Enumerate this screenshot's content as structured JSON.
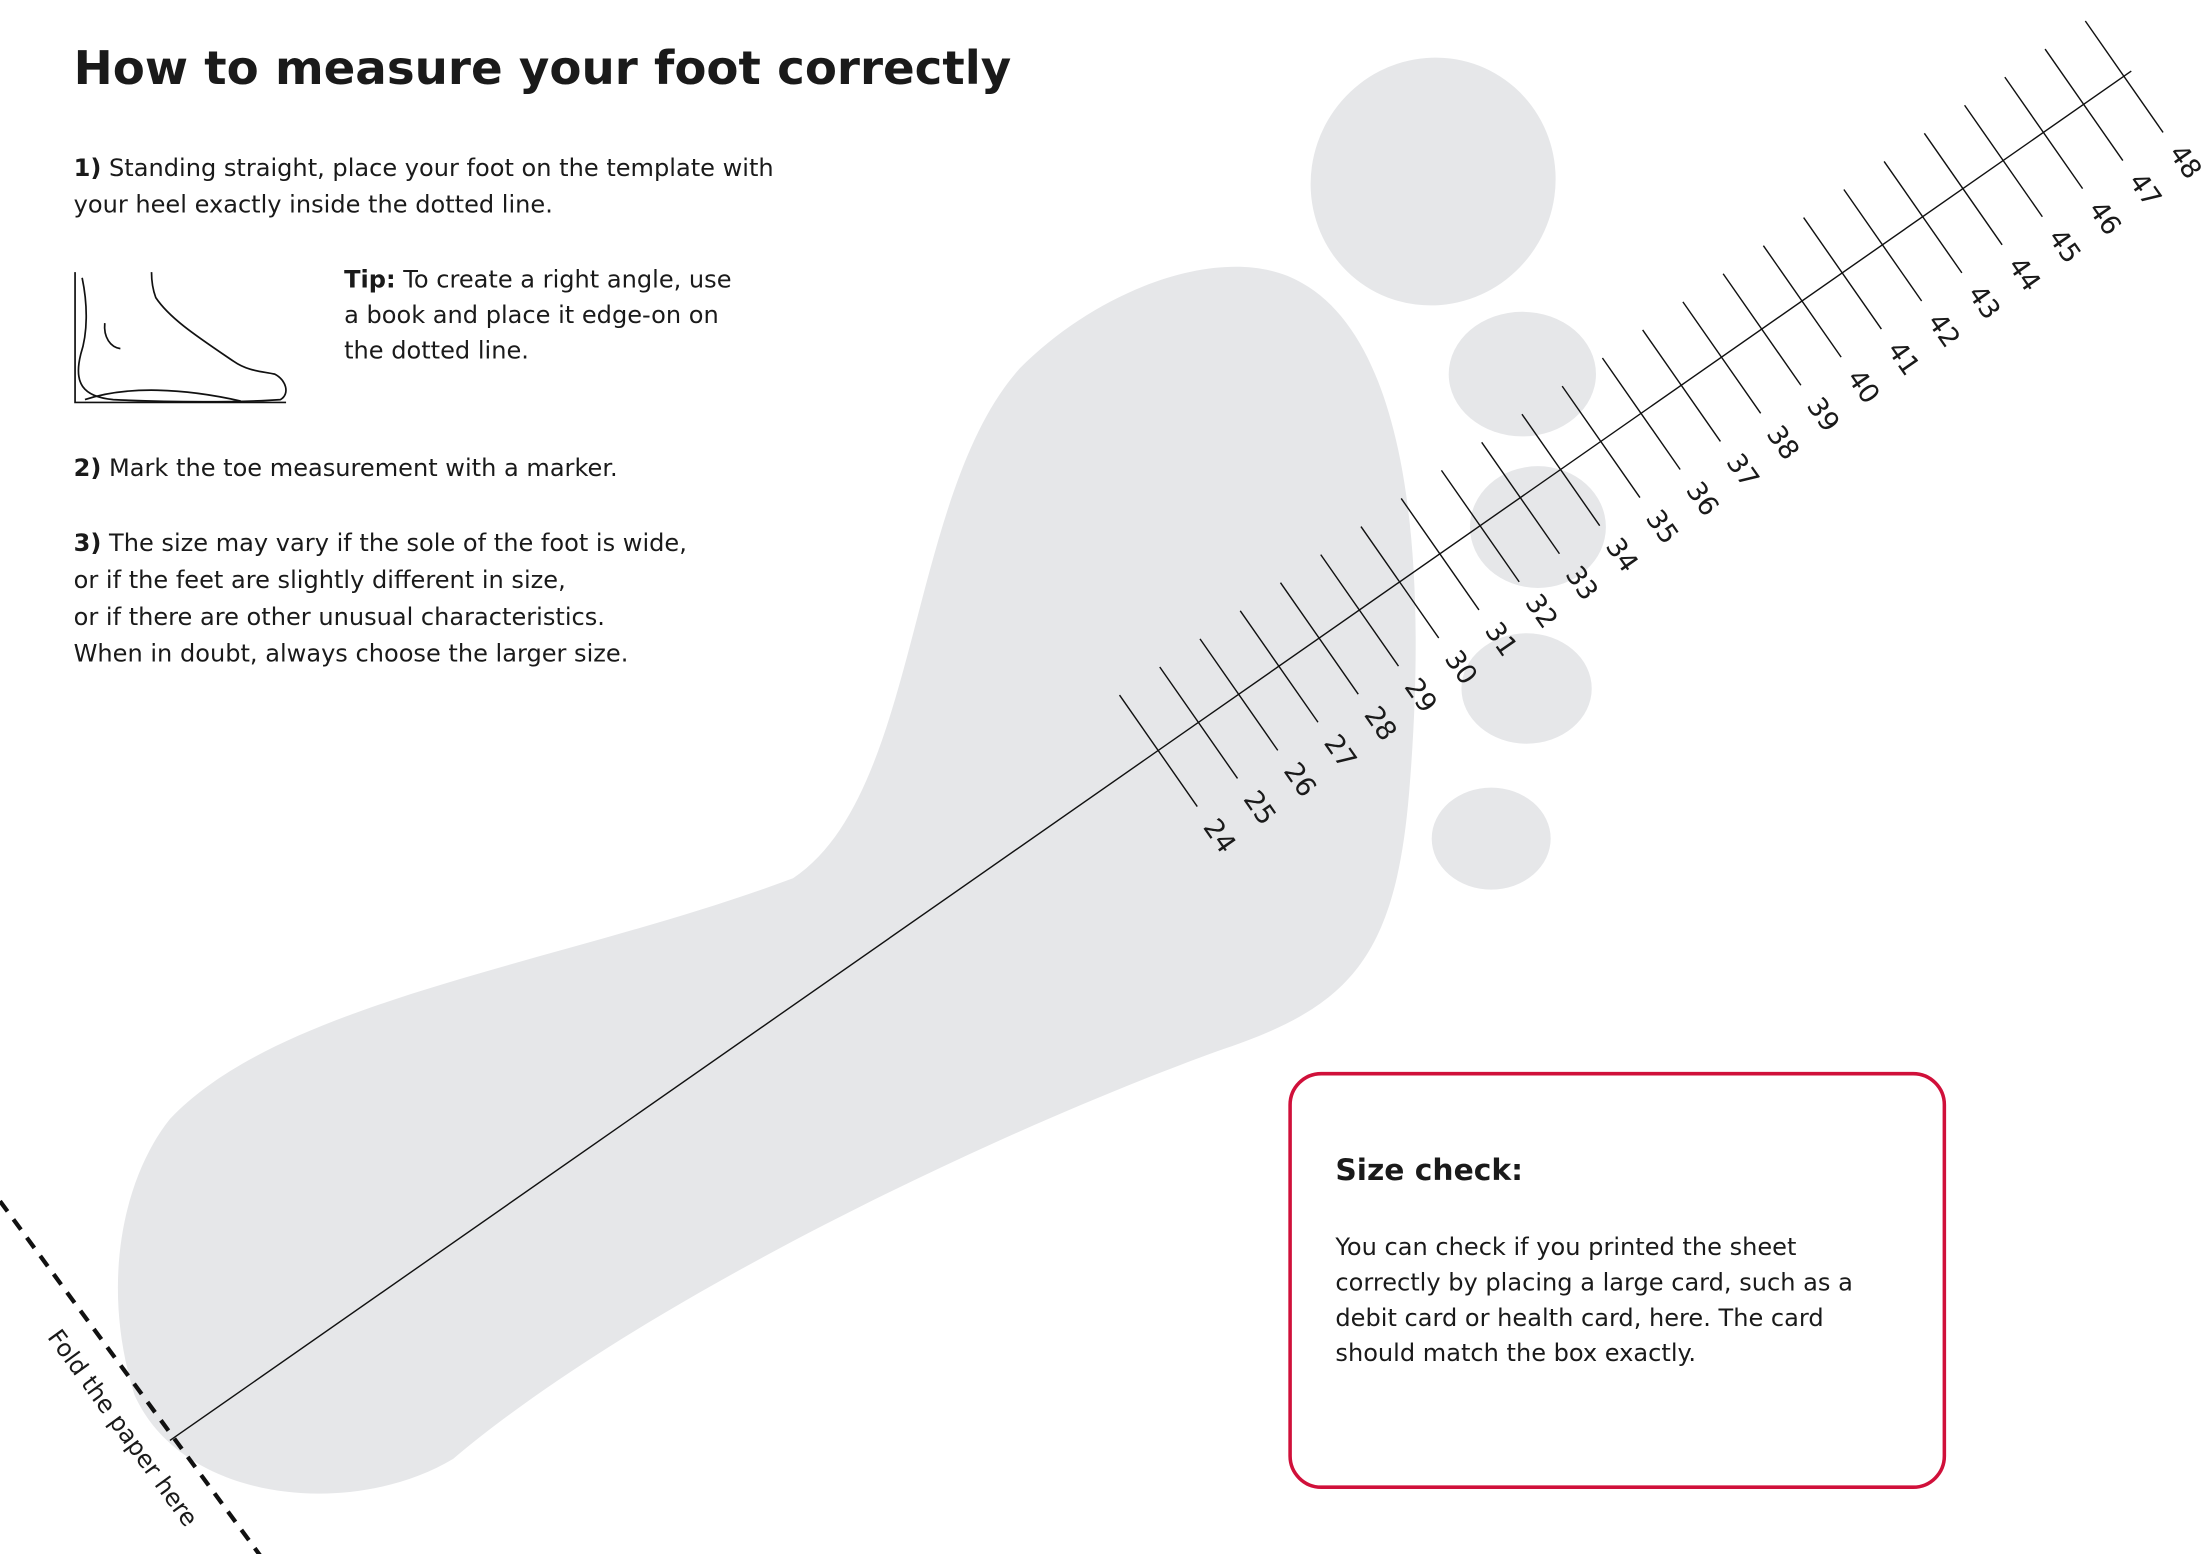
{
  "header": {
    "title": "How to measure your foot correctly"
  },
  "steps": [
    {
      "number": "1)",
      "lines": [
        "Standing straight, place your foot on the template with",
        "your heel exactly inside the dotted line."
      ]
    },
    {
      "number": "2)",
      "lines": [
        "Mark the toe measurement with a marker."
      ]
    },
    {
      "number": "3)",
      "lines": [
        "The size may vary if the sole of the foot is wide,",
        "or if the feet are slightly different in size,",
        "or if there are other unusual characteristics.",
        "When in doubt, always choose the larger size."
      ]
    }
  ],
  "tip": {
    "label": "Tip:",
    "lines": [
      "To create a right angle, use",
      "a book and place it edge-on on",
      "the dotted line."
    ]
  },
  "ruler": {
    "labels": [
      "24",
      "25",
      "26",
      "27",
      "28",
      "29",
      "30",
      "31",
      "32",
      "33",
      "34",
      "35",
      "36",
      "37",
      "38",
      "39",
      "40",
      "41",
      "42",
      "43",
      "44",
      "45",
      "46",
      "47",
      "48"
    ]
  },
  "fold": {
    "text": "Fold the paper here"
  },
  "size_check": {
    "title": "Size check:",
    "lines": [
      "You can check if you printed the sheet",
      "correctly by placing a large card, such as a",
      "debit card or health card, here. The card",
      "should match the box exactly."
    ]
  }
}
